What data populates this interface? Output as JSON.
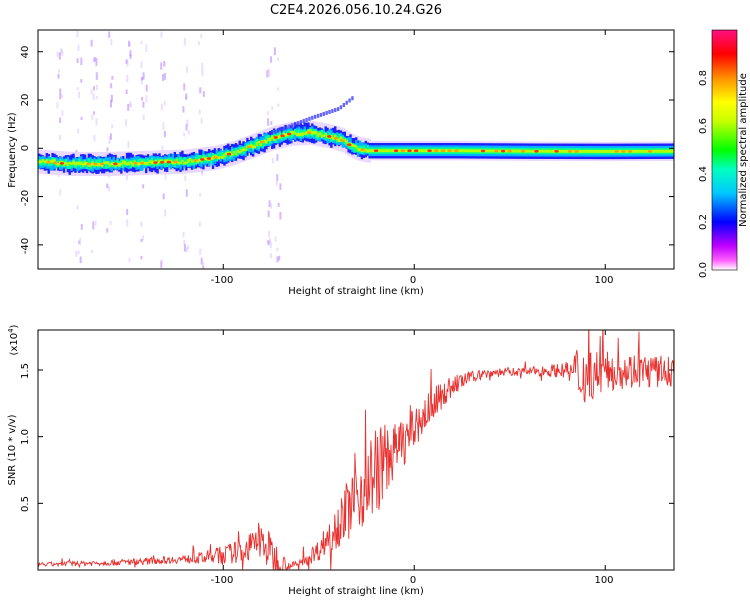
{
  "title": "C2E4.2026.056.10.24.G26",
  "chart_data": [
    {
      "type": "heatmap",
      "title": "C2E4.2026.056.10.24.G26",
      "xlabel": "Height of straight line (km)",
      "ylabel": "Frequency (Hz)",
      "xlim": [
        -197,
        136
      ],
      "ylim": [
        -50,
        49
      ],
      "xticks": [
        -100,
        0,
        100
      ],
      "xtick_labels": [
        "-100",
        "0",
        "100"
      ],
      "yticks": [
        -40,
        -20,
        0,
        20,
        40
      ],
      "ytick_labels": [
        "-40",
        "-20",
        "0",
        "20",
        "40"
      ],
      "ridge": {
        "x": [
          -197,
          -180,
          -160,
          -140,
          -120,
          -105,
          -95,
          -85,
          -75,
          -65,
          -55,
          -45,
          -38,
          -32,
          -28,
          -24,
          -10,
          0,
          20,
          60,
          100,
          136
        ],
        "freq": [
          -5.5,
          -6.5,
          -6.5,
          -6,
          -5.5,
          -4,
          -2,
          1,
          4,
          6,
          6.5,
          5,
          3.5,
          0.5,
          -0.5,
          -1,
          -1,
          -1,
          -1,
          -1.2,
          -1.3,
          -1.2
        ]
      },
      "colorbar": {
        "label": "Normalized spectral amplitude",
        "range": [
          0,
          1
        ],
        "ticks": [
          0,
          0.2,
          0.4,
          0.6,
          0.8
        ],
        "tick_labels": [
          "0.0",
          "0.2",
          "0.4",
          "0.6",
          "0.8"
        ],
        "colormap": [
          "#ff00ff",
          "#0000ff",
          "#00ffff",
          "#00ff00",
          "#ffff00",
          "#ff8000",
          "#ff0000",
          "#ff0080"
        ]
      }
    },
    {
      "type": "line",
      "title": "",
      "xlabel": "Height of straight line (km)",
      "ylabel": "SNR (10 * v/v)",
      "y_multiplier": "(x10",
      "y_multiplier_exp": "4",
      "y_multiplier_close": ")",
      "xlim": [
        -197,
        136
      ],
      "ylim": [
        0,
        1.8
      ],
      "xticks": [
        -100,
        0,
        100
      ],
      "xtick_labels": [
        "-100",
        "0",
        "100"
      ],
      "yticks": [
        0.5,
        1.0,
        1.5
      ],
      "ytick_labels": [
        "0.5",
        "1.0",
        "1.5"
      ],
      "series": [
        {
          "name": "SNR",
          "color": "#e8312f",
          "trend_x": [
            -197,
            -150,
            -110,
            -90,
            -80,
            -75,
            -70,
            -65,
            -60,
            -50,
            -40,
            -30,
            -20,
            -10,
            0,
            10,
            20,
            30,
            40,
            60,
            80,
            85,
            95,
            110,
            136
          ],
          "trend_y": [
            0.04,
            0.06,
            0.09,
            0.14,
            0.22,
            0.12,
            0.06,
            0.03,
            0.05,
            0.15,
            0.35,
            0.55,
            0.75,
            0.9,
            1.05,
            1.25,
            1.38,
            1.45,
            1.48,
            1.49,
            1.5,
            1.45,
            1.48,
            1.5,
            1.48
          ],
          "noise_x": [
            -197,
            -120,
            -90,
            -75,
            -65,
            -50,
            -30,
            -20,
            -10,
            10,
            30,
            60,
            80,
            85,
            100,
            136
          ],
          "noise_amp": [
            0.015,
            0.03,
            0.09,
            0.16,
            0.02,
            0.08,
            0.28,
            0.35,
            0.2,
            0.12,
            0.04,
            0.03,
            0.06,
            0.25,
            0.15,
            0.12
          ]
        }
      ]
    }
  ]
}
